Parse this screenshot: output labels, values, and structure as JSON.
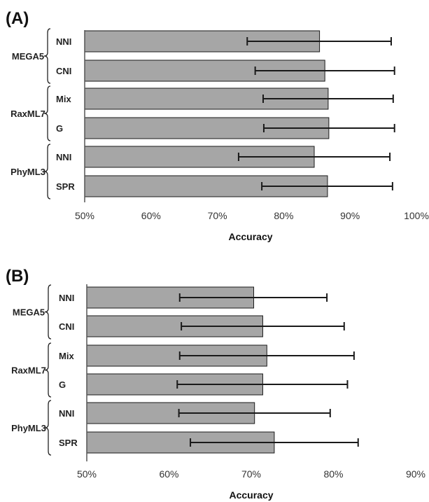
{
  "chart_data": [
    {
      "type": "bar",
      "orientation": "horizontal",
      "panel": "(A)",
      "xlabel": "Accuracy",
      "xlim": [
        0.5,
        1.0
      ],
      "xticks": [
        "50%",
        "60%",
        "70%",
        "80%",
        "90%",
        "100%"
      ],
      "groups": [
        {
          "name": "MEGA5",
          "categories": [
            "NNI",
            "CNI"
          ]
        },
        {
          "name": "RaxML7",
          "categories": [
            "Mix",
            "G"
          ]
        },
        {
          "name": "PhyML3",
          "categories": [
            "NNI",
            "SPR"
          ]
        }
      ],
      "categories": [
        "NNI",
        "CNI",
        "Mix",
        "G",
        "NNI",
        "SPR"
      ],
      "values": [
        0.854,
        0.862,
        0.867,
        0.868,
        0.846,
        0.866
      ],
      "error_low": [
        0.745,
        0.757,
        0.769,
        0.77,
        0.732,
        0.767
      ],
      "error_high": [
        0.962,
        0.967,
        0.965,
        0.967,
        0.96,
        0.964
      ],
      "grid": false,
      "bar_color": "#a6a6a6"
    },
    {
      "type": "bar",
      "orientation": "horizontal",
      "panel": "(B)",
      "xlabel": "Accuracy",
      "xlim": [
        0.5,
        0.9
      ],
      "xticks": [
        "50%",
        "60%",
        "70%",
        "80%",
        "90%"
      ],
      "groups": [
        {
          "name": "MEGA5",
          "categories": [
            "NNI",
            "CNI"
          ]
        },
        {
          "name": "RaxML7",
          "categories": [
            "Mix",
            "G"
          ]
        },
        {
          "name": "PhyML3",
          "categories": [
            "NNI",
            "SPR"
          ]
        }
      ],
      "categories": [
        "NNI",
        "CNI",
        "Mix",
        "G",
        "NNI",
        "SPR"
      ],
      "values": [
        0.703,
        0.714,
        0.719,
        0.714,
        0.704,
        0.728
      ],
      "error_low": [
        0.613,
        0.615,
        0.613,
        0.61,
        0.612,
        0.626
      ],
      "error_high": [
        0.792,
        0.813,
        0.825,
        0.817,
        0.796,
        0.83
      ],
      "grid": false,
      "bar_color": "#a6a6a6"
    }
  ]
}
